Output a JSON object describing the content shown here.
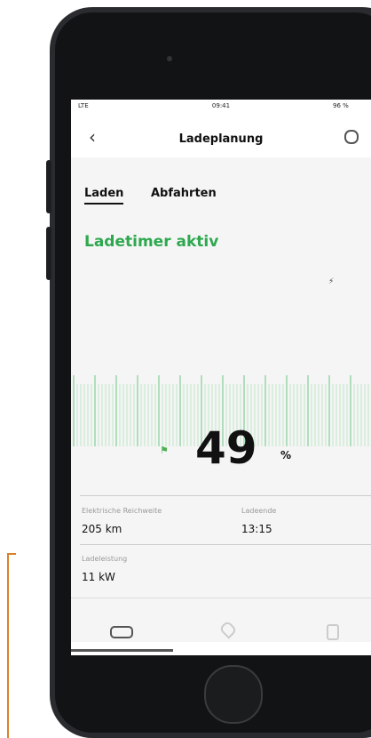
{
  "status_bar": {
    "network": "LTE",
    "time": "09:41",
    "battery": "96 %"
  },
  "header": {
    "title": "Ladeplanung"
  },
  "tabs": [
    "Laden",
    "Abfahrten"
  ],
  "status": "Ladetimer aktiv",
  "charge": {
    "value": "49",
    "unit": "%"
  },
  "info": [
    {
      "label": "Elektrische Reichweite",
      "value": "205 km"
    },
    {
      "label": "Ladeende",
      "value": "13:15"
    },
    {
      "label": "Ladeleistung",
      "value": "11 kW"
    }
  ]
}
